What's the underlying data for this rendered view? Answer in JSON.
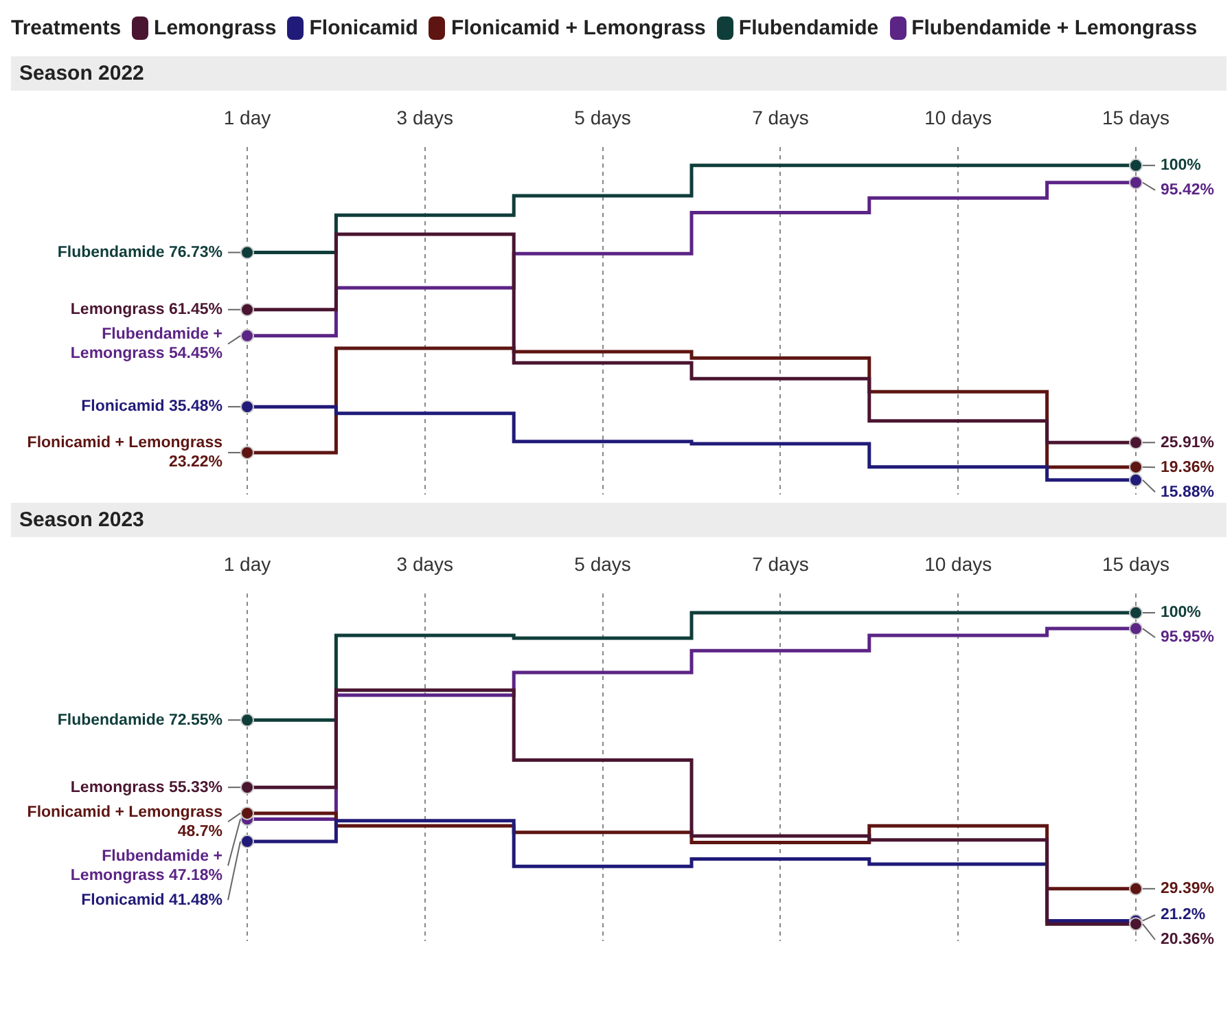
{
  "chart_data": [
    {
      "type": "step",
      "title": "Season 2022",
      "legend_title": "Treatments",
      "legend": "top",
      "grid": "x",
      "tick_labels": "x",
      "ylim": [
        12,
        105
      ],
      "categories": [
        "1 day",
        "3 days",
        "5 days",
        "7 days",
        "10 days",
        "15 days"
      ],
      "series": [
        {
          "name": "Lemongrass",
          "color": "#4a1530",
          "values": [
            61.45,
            81.6,
            47.2,
            43.0,
            31.7,
            25.91
          ],
          "value_labels": [
            "61.45%",
            null,
            null,
            null,
            null,
            "25.91%"
          ]
        },
        {
          "name": "Flonicamid",
          "color": "#201a78",
          "values": [
            35.48,
            33.7,
            26.2,
            25.6,
            19.4,
            15.88
          ],
          "value_labels": [
            "35.48%",
            null,
            null,
            null,
            null,
            "15.88%"
          ]
        },
        {
          "name": "Flonicamid + Lemongrass",
          "color": "#5e1512",
          "values": [
            23.22,
            51.1,
            50.2,
            48.5,
            39.5,
            19.36
          ],
          "value_labels": [
            "23.22%",
            null,
            null,
            null,
            null,
            "19.36%"
          ]
        },
        {
          "name": "Flubendamide",
          "color": "#0f3d3a",
          "values": [
            76.73,
            86.7,
            91.9,
            100,
            100,
            100
          ],
          "value_labels": [
            "76.73%",
            null,
            null,
            null,
            null,
            "100%"
          ]
        },
        {
          "name": "Flubendamide + Lemongrass",
          "color": "#5b2485",
          "values": [
            54.45,
            67.3,
            76.4,
            87.4,
            91.3,
            95.42
          ],
          "value_labels": [
            "54.45%",
            null,
            null,
            null,
            null,
            "95.42%"
          ]
        }
      ]
    },
    {
      "type": "step",
      "title": "Season 2023",
      "grid": "x",
      "tick_labels": "x",
      "ylim": [
        16,
        105
      ],
      "categories": [
        "1 day",
        "3 days",
        "5 days",
        "7 days",
        "10 days",
        "15 days"
      ],
      "series": [
        {
          "name": "Lemongrass",
          "color": "#4a1530",
          "values": [
            55.33,
            80.2,
            62.3,
            42.9,
            41.9,
            20.36
          ],
          "value_labels": [
            "55.33%",
            null,
            null,
            null,
            null,
            "20.36%"
          ]
        },
        {
          "name": "Flonicamid",
          "color": "#201a78",
          "values": [
            41.48,
            46.8,
            35.1,
            37.0,
            35.7,
            21.2
          ],
          "value_labels": [
            "41.48%",
            null,
            null,
            null,
            null,
            "21.2%"
          ]
        },
        {
          "name": "Flonicamid + Lemongrass",
          "color": "#5e1512",
          "values": [
            48.7,
            45.5,
            43.8,
            41.2,
            45.5,
            29.39
          ],
          "value_labels": [
            "48.7%",
            null,
            null,
            null,
            null,
            "29.39%"
          ]
        },
        {
          "name": "Flubendamide",
          "color": "#0f3d3a",
          "values": [
            72.55,
            94.2,
            93.5,
            100,
            100,
            100
          ],
          "value_labels": [
            "72.55%",
            null,
            null,
            null,
            null,
            "100%"
          ]
        },
        {
          "name": "Flubendamide + Lemongrass",
          "color": "#5b2485",
          "values": [
            47.18,
            78.9,
            84.7,
            90.3,
            94.2,
            95.95
          ],
          "value_labels": [
            "47.18%",
            null,
            null,
            null,
            null,
            "95.95%"
          ]
        }
      ]
    }
  ]
}
